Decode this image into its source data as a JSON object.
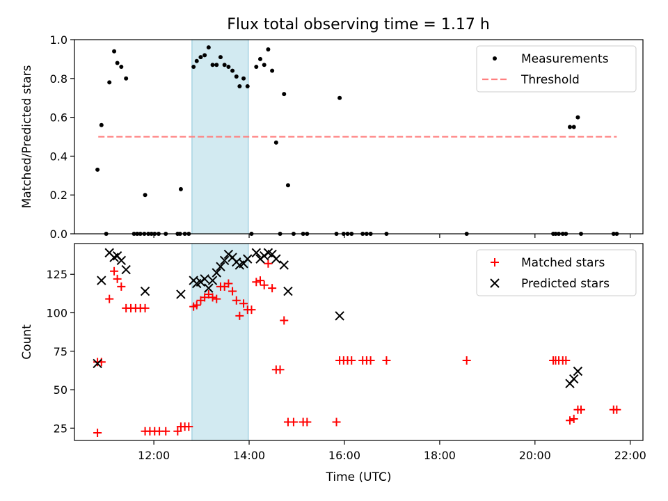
{
  "figure_title": "Flux total observing time = 1.17 h",
  "colors": {
    "measurement": "#000000",
    "threshold": "#ff8080",
    "matched": "#ff0000",
    "predicted": "#000000",
    "highlight": "#add8e6"
  },
  "chart_data": [
    {
      "type": "scatter",
      "ylabel": "Matched/Predicted stars",
      "xlabel": "",
      "xlim": [
        "10:20",
        "22:16"
      ],
      "ylim": [
        0,
        1.0
      ],
      "yticks": [
        "0.0",
        "0.2",
        "0.4",
        "0.6",
        "0.8",
        "1.0"
      ],
      "legend_position": "top-right",
      "highlight_span": [
        "12:48",
        "13:59"
      ],
      "threshold": {
        "name": "Threshold",
        "value": 0.5,
        "x_range": [
          "10:50",
          "21:43"
        ]
      },
      "series": [
        {
          "name": "Measurements",
          "marker": "dot",
          "points": [
            [
              "10:49",
              0.33
            ],
            [
              "10:54",
              0.56
            ],
            [
              "11:00",
              0.0
            ],
            [
              "11:04",
              0.78
            ],
            [
              "11:10",
              0.94
            ],
            [
              "11:14",
              0.88
            ],
            [
              "11:19",
              0.86
            ],
            [
              "11:25",
              0.8
            ],
            [
              "11:35",
              0.0
            ],
            [
              "11:39",
              0.0
            ],
            [
              "11:43",
              0.0
            ],
            [
              "11:48",
              0.0
            ],
            [
              "11:49",
              0.2
            ],
            [
              "11:53",
              0.0
            ],
            [
              "11:57",
              0.0
            ],
            [
              "12:01",
              0.0
            ],
            [
              "12:06",
              0.0
            ],
            [
              "12:15",
              0.0
            ],
            [
              "12:30",
              0.0
            ],
            [
              "12:33",
              0.0
            ],
            [
              "12:34",
              0.23
            ],
            [
              "12:39",
              0.0
            ],
            [
              "12:44",
              0.0
            ],
            [
              "12:50",
              0.86
            ],
            [
              "12:54",
              0.89
            ],
            [
              "12:59",
              0.91
            ],
            [
              "13:04",
              0.92
            ],
            [
              "13:09",
              0.96
            ],
            [
              "13:14",
              0.87
            ],
            [
              "13:19",
              0.87
            ],
            [
              "13:24",
              0.91
            ],
            [
              "13:29",
              0.87
            ],
            [
              "13:34",
              0.86
            ],
            [
              "13:39",
              0.84
            ],
            [
              "13:44",
              0.81
            ],
            [
              "13:48",
              0.76
            ],
            [
              "13:53",
              0.8
            ],
            [
              "13:58",
              0.76
            ],
            [
              "14:03",
              0.0
            ],
            [
              "14:09",
              0.86
            ],
            [
              "14:14",
              0.9
            ],
            [
              "14:19",
              0.87
            ],
            [
              "14:24",
              0.95
            ],
            [
              "14:29",
              0.84
            ],
            [
              "14:34",
              0.47
            ],
            [
              "14:39",
              0.0
            ],
            [
              "14:44",
              0.72
            ],
            [
              "14:49",
              0.25
            ],
            [
              "14:56",
              0.0
            ],
            [
              "15:08",
              0.0
            ],
            [
              "15:13",
              0.0
            ],
            [
              "15:50",
              0.0
            ],
            [
              "15:54",
              0.7
            ],
            [
              "15:59",
              0.0
            ],
            [
              "16:04",
              0.0
            ],
            [
              "16:09",
              0.0
            ],
            [
              "16:23",
              0.0
            ],
            [
              "16:28",
              0.0
            ],
            [
              "16:33",
              0.0
            ],
            [
              "16:53",
              0.0
            ],
            [
              "18:34",
              0.0
            ],
            [
              "20:23",
              0.0
            ],
            [
              "20:26",
              0.0
            ],
            [
              "20:30",
              0.0
            ],
            [
              "20:35",
              0.0
            ],
            [
              "20:39",
              0.0
            ],
            [
              "20:44",
              0.55
            ],
            [
              "20:49",
              0.55
            ],
            [
              "20:54",
              0.6
            ],
            [
              "20:58",
              0.0
            ],
            [
              "21:39",
              0.0
            ],
            [
              "21:43",
              0.0
            ]
          ]
        }
      ]
    },
    {
      "type": "scatter",
      "ylabel": "Count",
      "xlabel": "Time (UTC)",
      "xlim": [
        "10:20",
        "22:16"
      ],
      "ylim": [
        17,
        145
      ],
      "yticks": [
        "25",
        "50",
        "75",
        "100",
        "125"
      ],
      "xticks": [
        "12:00",
        "14:00",
        "16:00",
        "18:00",
        "20:00",
        "22:00"
      ],
      "legend_position": "top-right",
      "highlight_span": [
        "12:48",
        "13:59"
      ],
      "series": [
        {
          "name": "Matched stars",
          "marker": "plus",
          "points": [
            [
              "10:49",
              22
            ],
            [
              "10:49",
              68
            ],
            [
              "10:54",
              68
            ],
            [
              "11:04",
              109
            ],
            [
              "11:10",
              127
            ],
            [
              "11:14",
              122
            ],
            [
              "11:19",
              117
            ],
            [
              "11:25",
              103
            ],
            [
              "11:31",
              103
            ],
            [
              "11:37",
              103
            ],
            [
              "11:43",
              103
            ],
            [
              "11:49",
              103
            ],
            [
              "11:49",
              23
            ],
            [
              "11:55",
              23
            ],
            [
              "12:01",
              23
            ],
            [
              "12:07",
              23
            ],
            [
              "12:15",
              23
            ],
            [
              "12:30",
              23
            ],
            [
              "12:34",
              26
            ],
            [
              "12:39",
              26
            ],
            [
              "12:44",
              26
            ],
            [
              "12:50",
              104
            ],
            [
              "12:54",
              105
            ],
            [
              "12:59",
              108
            ],
            [
              "13:04",
              110
            ],
            [
              "13:09",
              112
            ],
            [
              "13:14",
              110
            ],
            [
              "13:19",
              109
            ],
            [
              "13:24",
              117
            ],
            [
              "13:29",
              117
            ],
            [
              "13:34",
              119
            ],
            [
              "13:39",
              114
            ],
            [
              "13:44",
              108
            ],
            [
              "13:48",
              98
            ],
            [
              "13:53",
              106
            ],
            [
              "13:58",
              102
            ],
            [
              "14:03",
              102
            ],
            [
              "14:09",
              120
            ],
            [
              "14:14",
              121
            ],
            [
              "14:19",
              118
            ],
            [
              "14:24",
              132
            ],
            [
              "14:29",
              116
            ],
            [
              "14:34",
              63
            ],
            [
              "14:39",
              63
            ],
            [
              "14:44",
              95
            ],
            [
              "14:49",
              29
            ],
            [
              "14:56",
              29
            ],
            [
              "15:08",
              29
            ],
            [
              "15:13",
              29
            ],
            [
              "15:50",
              29
            ],
            [
              "15:54",
              69
            ],
            [
              "15:59",
              69
            ],
            [
              "16:04",
              69
            ],
            [
              "16:09",
              69
            ],
            [
              "16:23",
              69
            ],
            [
              "16:28",
              69
            ],
            [
              "16:33",
              69
            ],
            [
              "16:53",
              69
            ],
            [
              "18:34",
              69
            ],
            [
              "20:23",
              69
            ],
            [
              "20:26",
              69
            ],
            [
              "20:30",
              69
            ],
            [
              "20:35",
              69
            ],
            [
              "20:39",
              69
            ],
            [
              "20:44",
              30
            ],
            [
              "20:49",
              31
            ],
            [
              "20:54",
              37
            ],
            [
              "20:58",
              37
            ],
            [
              "21:39",
              37
            ],
            [
              "21:43",
              37
            ]
          ]
        },
        {
          "name": "Predicted stars",
          "marker": "x",
          "points": [
            [
              "10:49",
              67
            ],
            [
              "10:54",
              121
            ],
            [
              "11:04",
              139
            ],
            [
              "11:10",
              136
            ],
            [
              "11:14",
              137
            ],
            [
              "11:19",
              134
            ],
            [
              "11:25",
              128
            ],
            [
              "11:49",
              114
            ],
            [
              "12:34",
              112
            ],
            [
              "12:50",
              121
            ],
            [
              "12:54",
              119
            ],
            [
              "12:59",
              120
            ],
            [
              "13:04",
              122
            ],
            [
              "13:09",
              116
            ],
            [
              "13:14",
              121
            ],
            [
              "13:19",
              126
            ],
            [
              "13:24",
              130
            ],
            [
              "13:29",
              134
            ],
            [
              "13:34",
              138
            ],
            [
              "13:39",
              136
            ],
            [
              "13:44",
              133
            ],
            [
              "13:48",
              131
            ],
            [
              "13:53",
              132
            ],
            [
              "13:58",
              135
            ],
            [
              "14:09",
              139
            ],
            [
              "14:14",
              135
            ],
            [
              "14:19",
              137
            ],
            [
              "14:24",
              139
            ],
            [
              "14:29",
              138
            ],
            [
              "14:34",
              135
            ],
            [
              "14:44",
              131
            ],
            [
              "14:49",
              114
            ],
            [
              "15:54",
              98
            ],
            [
              "20:44",
              54
            ],
            [
              "20:49",
              57
            ],
            [
              "20:54",
              62
            ]
          ]
        }
      ]
    }
  ]
}
